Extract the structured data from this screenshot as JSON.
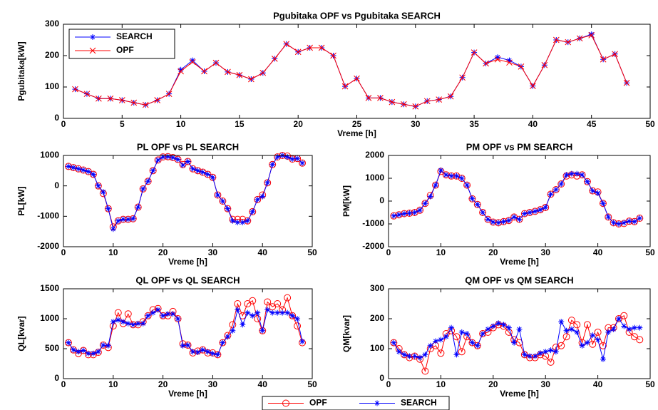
{
  "chart_data": [
    {
      "type": "line",
      "title": "Pgubitaka OPF vs Pgubitaka SEARCH",
      "xlabel": "Vreme [h]",
      "ylabel": "Pgubitaka[kW]",
      "x": [
        1,
        2,
        3,
        4,
        5,
        6,
        7,
        8,
        9,
        10,
        11,
        12,
        13,
        14,
        15,
        16,
        17,
        18,
        19,
        20,
        21,
        22,
        23,
        24,
        25,
        26,
        27,
        28,
        29,
        30,
        31,
        32,
        33,
        34,
        35,
        36,
        37,
        38,
        39,
        40,
        41,
        42,
        43,
        44,
        45,
        46,
        47,
        48
      ],
      "series": [
        {
          "name": "SEARCH",
          "color": "#0000ff",
          "marker": "*",
          "values": [
            93,
            78,
            63,
            63,
            58,
            50,
            43,
            58,
            78,
            155,
            185,
            150,
            177,
            148,
            138,
            125,
            145,
            190,
            237,
            212,
            225,
            225,
            200,
            102,
            127,
            65,
            65,
            52,
            45,
            38,
            55,
            60,
            70,
            130,
            210,
            175,
            195,
            185,
            165,
            103,
            170,
            250,
            243,
            255,
            268,
            188,
            205,
            113
          ]
        },
        {
          "name": "OPF",
          "color": "#ff0000",
          "marker": "x",
          "values": [
            93,
            78,
            63,
            63,
            58,
            50,
            43,
            58,
            78,
            150,
            180,
            150,
            177,
            148,
            138,
            125,
            145,
            190,
            237,
            212,
            225,
            225,
            200,
            102,
            127,
            65,
            65,
            52,
            45,
            38,
            55,
            60,
            70,
            130,
            210,
            175,
            188,
            178,
            165,
            103,
            170,
            250,
            243,
            255,
            265,
            188,
            205,
            113
          ]
        }
      ],
      "xlim": [
        0,
        50
      ],
      "xticks": [
        0,
        5,
        10,
        15,
        20,
        25,
        30,
        35,
        40,
        45,
        50
      ],
      "ylim": [
        0,
        300
      ],
      "yticks": [
        0,
        100,
        200,
        300
      ],
      "legend": "upper left"
    },
    {
      "type": "line",
      "title": "PL OPF vs PL SEARCH",
      "xlabel": "Vreme [h]",
      "ylabel": "PL[kW]",
      "x": [
        1,
        2,
        3,
        4,
        5,
        6,
        7,
        8,
        9,
        10,
        11,
        12,
        13,
        14,
        15,
        16,
        17,
        18,
        19,
        20,
        21,
        22,
        23,
        24,
        25,
        26,
        27,
        28,
        29,
        30,
        31,
        32,
        33,
        34,
        35,
        36,
        37,
        38,
        39,
        40,
        41,
        42,
        43,
        44,
        45,
        46,
        47,
        48
      ],
      "series": [
        {
          "name": "OPF",
          "color": "#ff0000",
          "marker": "o",
          "values": [
            640,
            600,
            560,
            520,
            470,
            380,
            0,
            -250,
            -750,
            -1350,
            -1150,
            -1100,
            -1100,
            -1080,
            -700,
            -100,
            150,
            500,
            850,
            950,
            960,
            930,
            870,
            700,
            800,
            560,
            500,
            450,
            380,
            280,
            -300,
            -500,
            -750,
            -1100,
            -1100,
            -1100,
            -1150,
            -850,
            -450,
            -300,
            100,
            700,
            950,
            1000,
            980,
            880,
            900,
            750
          ]
        },
        {
          "name": "SEARCH",
          "color": "#0000ff",
          "marker": "*",
          "values": [
            640,
            600,
            560,
            520,
            470,
            380,
            0,
            -200,
            -750,
            -1420,
            -1150,
            -1100,
            -1100,
            -1080,
            -700,
            -100,
            150,
            500,
            850,
            950,
            960,
            930,
            870,
            680,
            800,
            560,
            500,
            450,
            380,
            280,
            -300,
            -500,
            -750,
            -1150,
            -1200,
            -1200,
            -1150,
            -850,
            -450,
            -350,
            100,
            700,
            950,
            1000,
            950,
            880,
            900,
            750
          ]
        }
      ],
      "xlim": [
        0,
        50
      ],
      "xticks": [
        0,
        10,
        20,
        30,
        40,
        50
      ],
      "ylim": [
        -2000,
        1000
      ],
      "yticks": [
        -2000,
        -1000,
        0,
        1000
      ],
      "legend": "bottom outside"
    },
    {
      "type": "line",
      "title": "PM OPF vs PM SEARCH",
      "xlabel": "Vreme [h]",
      "ylabel": "PM[kW]",
      "x": [
        1,
        2,
        3,
        4,
        5,
        6,
        7,
        8,
        9,
        10,
        11,
        12,
        13,
        14,
        15,
        16,
        17,
        18,
        19,
        20,
        21,
        22,
        23,
        24,
        25,
        26,
        27,
        28,
        29,
        30,
        31,
        32,
        33,
        34,
        35,
        36,
        37,
        38,
        39,
        40,
        41,
        42,
        43,
        44,
        45,
        46,
        47,
        48
      ],
      "series": [
        {
          "name": "OPF",
          "color": "#ff0000",
          "marker": "o",
          "values": [
            -650,
            -600,
            -550,
            -530,
            -500,
            -400,
            -100,
            250,
            700,
            1300,
            1150,
            1100,
            1100,
            1000,
            700,
            100,
            -150,
            -500,
            -800,
            -920,
            -950,
            -900,
            -850,
            -700,
            -800,
            -550,
            -500,
            -450,
            -380,
            -280,
            300,
            500,
            750,
            1100,
            1150,
            1100,
            1150,
            850,
            450,
            400,
            -100,
            -700,
            -950,
            -1000,
            -980,
            -880,
            -900,
            -750
          ]
        },
        {
          "name": "SEARCH",
          "color": "#0000ff",
          "marker": "*",
          "values": [
            -650,
            -600,
            -550,
            -530,
            -500,
            -400,
            -100,
            200,
            700,
            1350,
            1150,
            1100,
            1100,
            1000,
            700,
            100,
            -150,
            -500,
            -800,
            -920,
            -950,
            -900,
            -850,
            -700,
            -800,
            -550,
            -500,
            -450,
            -380,
            -280,
            300,
            500,
            750,
            1150,
            1200,
            1200,
            1150,
            850,
            450,
            350,
            -100,
            -700,
            -950,
            -1000,
            -950,
            -880,
            -900,
            -750
          ]
        }
      ],
      "xlim": [
        0,
        50
      ],
      "xticks": [
        0,
        10,
        20,
        30,
        40,
        50
      ],
      "ylim": [
        -2000,
        2000
      ],
      "yticks": [
        -2000,
        -1000,
        0,
        1000,
        2000
      ]
    },
    {
      "type": "line",
      "title": "QL OPF vs QL SEARCH",
      "xlabel": "Vreme [h]",
      "ylabel": "QL[kvar]",
      "x": [
        1,
        2,
        3,
        4,
        5,
        6,
        7,
        8,
        9,
        10,
        11,
        12,
        13,
        14,
        15,
        16,
        17,
        18,
        19,
        20,
        21,
        22,
        23,
        24,
        25,
        26,
        27,
        28,
        29,
        30,
        31,
        32,
        33,
        34,
        35,
        36,
        37,
        38,
        39,
        40,
        41,
        42,
        43,
        44,
        45,
        46,
        47,
        48
      ],
      "series": [
        {
          "name": "OPF",
          "color": "#ff0000",
          "marker": "o",
          "values": [
            600,
            480,
            420,
            470,
            400,
            400,
            440,
            560,
            520,
            880,
            1100,
            920,
            1080,
            900,
            900,
            950,
            1050,
            1150,
            1170,
            1050,
            1050,
            1120,
            1000,
            580,
            560,
            430,
            460,
            480,
            430,
            430,
            400,
            600,
            720,
            900,
            1250,
            1050,
            1250,
            1300,
            1000,
            800,
            1280,
            1200,
            1250,
            1150,
            1350,
            1050,
            880,
            600
          ]
        },
        {
          "name": "SEARCH",
          "color": "#0000ff",
          "marker": "*",
          "values": [
            600,
            480,
            450,
            470,
            420,
            420,
            450,
            560,
            550,
            950,
            980,
            950,
            920,
            900,
            920,
            920,
            1050,
            1100,
            1150,
            1050,
            1080,
            1080,
            1000,
            550,
            560,
            450,
            440,
            480,
            450,
            420,
            400,
            600,
            700,
            800,
            1150,
            900,
            1100,
            1050,
            1100,
            800,
            1150,
            1100,
            1100,
            1100,
            1100,
            1050,
            1000,
            620
          ]
        }
      ],
      "xlim": [
        0,
        50
      ],
      "xticks": [
        0,
        10,
        20,
        30,
        40,
        50
      ],
      "ylim": [
        0,
        1500
      ],
      "yticks": [
        0,
        500,
        1000,
        1500
      ]
    },
    {
      "type": "line",
      "title": "QM OPF vs QM SEARCH",
      "xlabel": "Vreme [h]",
      "ylabel": "QM[kvar]",
      "x": [
        1,
        2,
        3,
        4,
        5,
        6,
        7,
        8,
        9,
        10,
        11,
        12,
        13,
        14,
        15,
        16,
        17,
        18,
        19,
        20,
        21,
        22,
        23,
        24,
        25,
        26,
        27,
        28,
        29,
        30,
        31,
        32,
        33,
        34,
        35,
        36,
        37,
        38,
        39,
        40,
        41,
        42,
        43,
        44,
        45,
        46,
        47,
        48
      ],
      "series": [
        {
          "name": "OPF",
          "color": "#ff0000",
          "marker": "o",
          "values": [
            120,
            100,
            80,
            70,
            75,
            65,
            25,
            100,
            110,
            85,
            150,
            160,
            140,
            90,
            140,
            120,
            110,
            150,
            155,
            170,
            180,
            175,
            155,
            130,
            120,
            80,
            70,
            70,
            80,
            75,
            55,
            105,
            110,
            140,
            195,
            180,
            120,
            180,
            115,
            155,
            110,
            170,
            170,
            200,
            210,
            155,
            140,
            130
          ]
        },
        {
          "name": "SEARCH",
          "color": "#0000ff",
          "marker": "*",
          "values": [
            120,
            90,
            80,
            75,
            75,
            70,
            80,
            110,
            125,
            130,
            140,
            170,
            80,
            155,
            150,
            120,
            110,
            150,
            165,
            175,
            185,
            180,
            170,
            120,
            165,
            80,
            75,
            75,
            85,
            90,
            95,
            90,
            190,
            160,
            165,
            155,
            110,
            120,
            145,
            130,
            65,
            155,
            165,
            200,
            175,
            165,
            170,
            170
          ]
        }
      ],
      "xlim": [
        0,
        50
      ],
      "xticks": [
        0,
        10,
        20,
        30,
        40,
        50
      ],
      "ylim": [
        0,
        300
      ],
      "yticks": [
        0,
        100,
        200,
        300
      ]
    }
  ]
}
